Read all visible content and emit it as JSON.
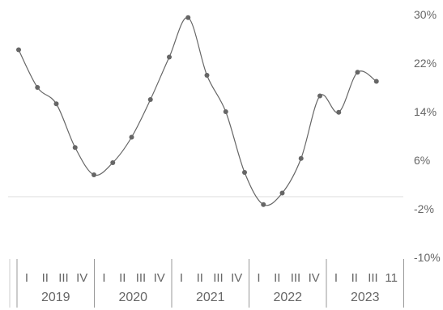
{
  "chart_data": {
    "type": "line",
    "title": "",
    "xlabel": "",
    "ylabel": "",
    "ylim": [
      -10,
      30
    ],
    "y_ticks": [
      {
        "value": 30,
        "label": "30%"
      },
      {
        "value": 22,
        "label": "22%"
      },
      {
        "value": 14,
        "label": "14%"
      },
      {
        "value": 6,
        "label": "6%"
      },
      {
        "value": -2,
        "label": "-2%"
      },
      {
        "value": -10,
        "label": "-10%"
      }
    ],
    "zero_line": 0,
    "years": [
      "2019",
      "2020",
      "2021",
      "2022",
      "2023"
    ],
    "quarter_labels": [
      [
        "I",
        "II",
        "III",
        "IV"
      ],
      [
        "I",
        "II",
        "III",
        "IV"
      ],
      [
        "I",
        "II",
        "III",
        "IV"
      ],
      [
        "I",
        "II",
        "III",
        "IV"
      ],
      [
        "I",
        "II",
        "III",
        "11"
      ]
    ],
    "series": [
      {
        "color": "#666666",
        "values": [
          24.2,
          18.0,
          15.3,
          8.1,
          3.6,
          5.6,
          9.8,
          16.0,
          23.0,
          29.5,
          20.0,
          14.0,
          4.0,
          -1.3,
          0.6,
          6.3,
          16.6,
          13.9,
          20.5,
          19.0
        ]
      }
    ]
  }
}
